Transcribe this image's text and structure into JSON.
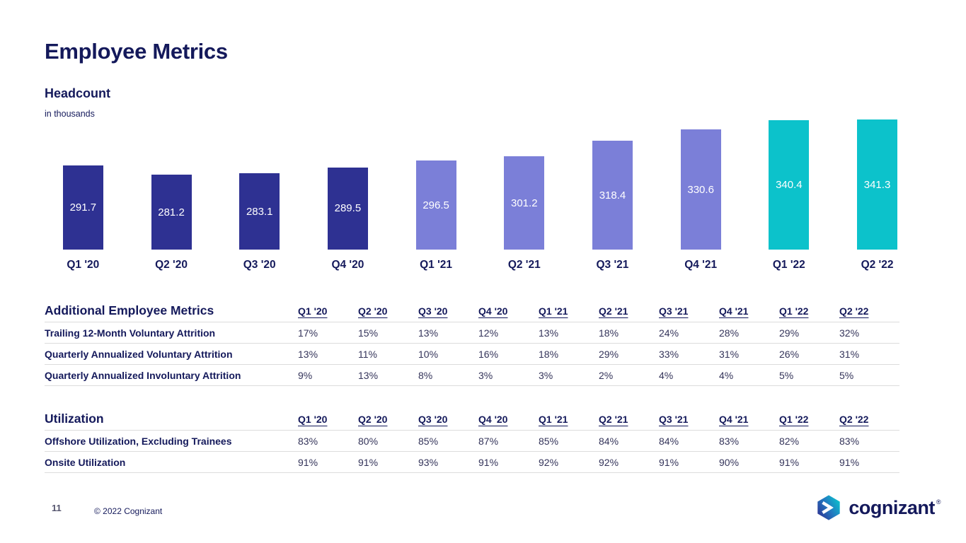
{
  "slide": {
    "title": "Employee Metrics",
    "page_number": "11",
    "copyright": "© 2022 Cognizant",
    "logo_text": "cognizant",
    "logo_registered": "®"
  },
  "chart": {
    "heading": "Headcount",
    "subheading": "in thousands"
  },
  "chart_data": {
    "type": "bar",
    "title": "Headcount",
    "subtitle": "in thousands",
    "categories": [
      "Q1 '20",
      "Q2 '20",
      "Q3 '20",
      "Q4 '20",
      "Q1 '21",
      "Q2 '21",
      "Q3 '21",
      "Q4 '21",
      "Q1 '22",
      "Q2 '22"
    ],
    "values": [
      291.7,
      281.2,
      283.1,
      289.5,
      296.5,
      301.2,
      318.4,
      330.6,
      340.4,
      341.3
    ],
    "colors": [
      "#2E3192",
      "#2E3192",
      "#2E3192",
      "#2E3192",
      "#7B7FD8",
      "#7B7FD8",
      "#7B7FD8",
      "#7B7FD8",
      "#0CC2CB",
      "#0CC2CB"
    ],
    "xlabel": "",
    "ylabel": "Headcount (in thousands)",
    "ylim": [
      200,
      345
    ],
    "grid": false,
    "legend": false,
    "value_labels_shown": true
  },
  "tables": [
    {
      "title": "Additional Employee Metrics",
      "columns": [
        "Q1 '20",
        "Q2 '20",
        "Q3 '20",
        "Q4 '20",
        "Q1 '21",
        "Q2 '21",
        "Q3 '21",
        "Q4 '21",
        "Q1 '22",
        "Q2 '22"
      ],
      "rows": [
        {
          "label": "Trailing 12-Month Voluntary Attrition",
          "values": [
            "17%",
            "15%",
            "13%",
            "12%",
            "13%",
            "18%",
            "24%",
            "28%",
            "29%",
            "32%"
          ]
        },
        {
          "label": "Quarterly Annualized Voluntary Attrition",
          "values": [
            "13%",
            "11%",
            "10%",
            "16%",
            "18%",
            "29%",
            "33%",
            "31%",
            "26%",
            "31%"
          ]
        },
        {
          "label": "Quarterly Annualized Involuntary Attrition",
          "values": [
            "9%",
            "13%",
            "8%",
            "3%",
            "3%",
            "2%",
            "4%",
            "4%",
            "5%",
            "5%"
          ]
        }
      ]
    },
    {
      "title": "Utilization",
      "columns": [
        "Q1 '20",
        "Q2 '20",
        "Q3 '20",
        "Q4 '20",
        "Q1 '21",
        "Q2 '21",
        "Q3 '21",
        "Q4 '21",
        "Q1 '22",
        "Q2 '22"
      ],
      "rows": [
        {
          "label": "Offshore Utilization, Excluding Trainees",
          "values": [
            "83%",
            "80%",
            "85%",
            "87%",
            "85%",
            "84%",
            "84%",
            "83%",
            "82%",
            "83%"
          ]
        },
        {
          "label": "Onsite Utilization",
          "values": [
            "91%",
            "91%",
            "93%",
            "91%",
            "92%",
            "92%",
            "91%",
            "90%",
            "91%",
            "91%"
          ]
        }
      ]
    }
  ],
  "colors": {
    "navy_bar": "#2E3192",
    "periwinkle_bar": "#7B7FD8",
    "teal_bar": "#0CC2CB",
    "text_navy": "#14195B",
    "separator": "#DCDCDC",
    "bar_value_text": "#FFFFFF"
  }
}
